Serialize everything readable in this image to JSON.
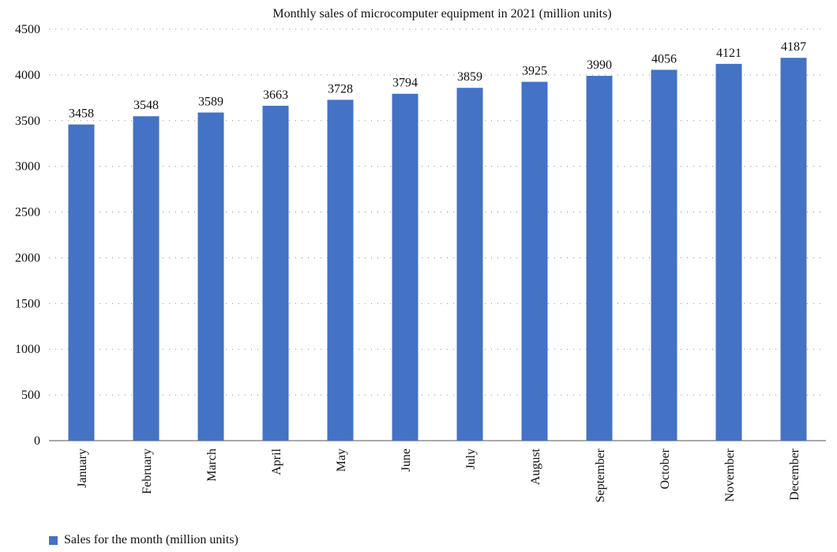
{
  "chart_data": {
    "type": "bar",
    "title": "Monthly sales of microcomputer equipment in 2021 (million units)",
    "xlabel": "",
    "ylabel": "",
    "categories": [
      "January",
      "February",
      "March",
      "April",
      "May",
      "June",
      "July",
      "August",
      "September",
      "October",
      "November",
      "December"
    ],
    "series": [
      {
        "name": "Sales for the month (million units)",
        "values": [
          3458,
          3548,
          3589,
          3663,
          3728,
          3794,
          3859,
          3925,
          3990,
          4056,
          4121,
          4187
        ],
        "color": "#4472c4"
      }
    ],
    "ylim": [
      0,
      4500
    ],
    "yticks": [
      0,
      500,
      1000,
      1500,
      2000,
      2500,
      3000,
      3500,
      4000,
      4500
    ],
    "grid": true,
    "grid_style": "dotted",
    "legend_position": "bottom-left",
    "data_labels": true
  }
}
